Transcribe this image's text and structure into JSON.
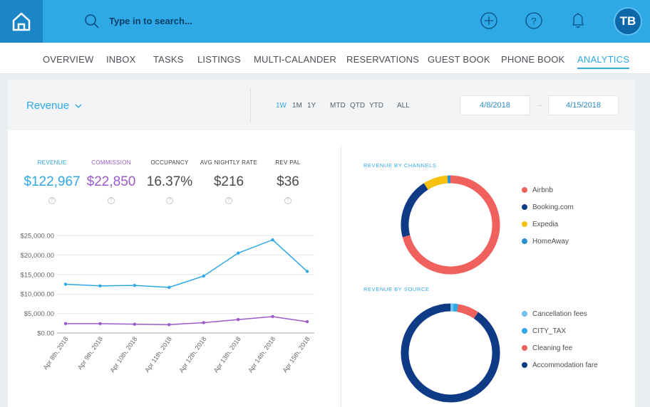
{
  "header": {
    "search_placeholder": "Type in to search...",
    "avatar_initials": "TB"
  },
  "nav": {
    "items": [
      {
        "label": "OVERVIEW"
      },
      {
        "label": "INBOX"
      },
      {
        "label": "TASKS"
      },
      {
        "label": "LISTINGS"
      },
      {
        "label": "MULTI-CALANDER"
      },
      {
        "label": "RESERVATIONS"
      },
      {
        "label": "GUEST BOOK"
      },
      {
        "label": "PHONE BOOK"
      },
      {
        "label": "ANALYTICS",
        "active": true
      }
    ]
  },
  "filters": {
    "metric_label": "Revenue",
    "ranges": [
      "1W",
      "1M",
      "1Y",
      "MTD",
      "QTD",
      "YTD",
      "ALL"
    ],
    "active_range": "1W",
    "start_date": "4/8/2018",
    "end_date": "4/15/2018",
    "arrow": "→"
  },
  "kpis": [
    {
      "label": "REVENUE",
      "value": "$122,967",
      "color": "#2fa8e6"
    },
    {
      "label": "COMMISSION",
      "value": "$22,850",
      "color": "#9b59c9"
    },
    {
      "label": "OCCUPANCY",
      "value": "16.37%",
      "color": "#474b50"
    },
    {
      "label": "AVG NIGHTLY RATE",
      "value": "$216",
      "color": "#474b50"
    },
    {
      "label": "REV PAL",
      "value": "$36",
      "color": "#474b50"
    }
  ],
  "help_glyph": "?",
  "chart_data": [
    {
      "type": "line",
      "x": [
        "Apr 8th, 2018",
        "Apr 9th, 2018",
        "Apr 10th, 2018",
        "Apr 11th, 2018",
        "Apr 12th, 2018",
        "Apr 13th, 2018",
        "Apr 14th, 2018",
        "Apr 15th, 2018"
      ],
      "y_ticks": [
        "$0.00",
        "$5,000.00",
        "$10,000.00",
        "$15,000.00",
        "$20,000.00",
        "$25,000.00"
      ],
      "ylim": [
        0,
        25000
      ],
      "series": [
        {
          "values": [
            12500,
            12100,
            12200,
            11700,
            14600,
            20500,
            23900,
            15800
          ],
          "color": "#2fa8e6"
        },
        {
          "values": [
            2400,
            2400,
            2250,
            2150,
            2650,
            3450,
            4200,
            2900
          ],
          "color": "#9b59c9"
        }
      ]
    },
    {
      "type": "pie",
      "title": "REVENUE BY CHANNELS",
      "labels": [
        "Airbnb",
        "Booking.com",
        "Expedia",
        "HomeAway"
      ],
      "values": [
        71,
        20,
        8,
        1
      ],
      "colors": [
        "#f0605d",
        "#0f3a85",
        "#f6c20f",
        "#2c8fd0"
      ]
    },
    {
      "type": "pie",
      "title": "REVENUE BY SOURCE",
      "labels": [
        "Cancellation fees",
        "CITY_TAX",
        "Cleaning fee",
        "Accommodation fare"
      ],
      "values": [
        1,
        1.5,
        7,
        90.5
      ],
      "colors": [
        "#70c0ee",
        "#2fa8e6",
        "#f0605d",
        "#0f3a85"
      ]
    }
  ]
}
